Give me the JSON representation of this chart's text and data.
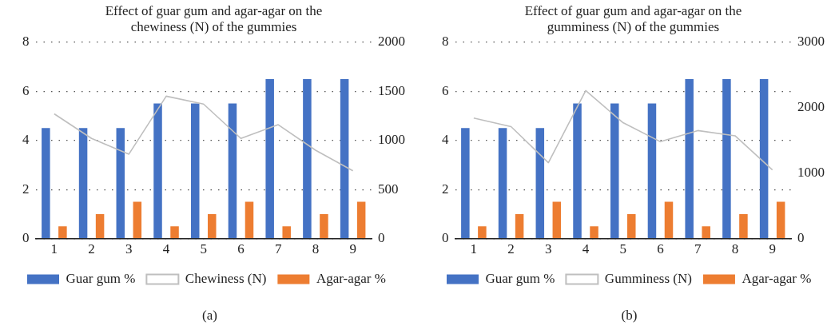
{
  "chart_data": [
    {
      "type": "bar",
      "title": "Effect of guar gum and agar-agar on the chewiness (N) of the gummies",
      "categories": [
        "1",
        "2",
        "3",
        "4",
        "5",
        "6",
        "7",
        "8",
        "9"
      ],
      "series": [
        {
          "name": "Guar gum %",
          "color": "#4472c4",
          "values": [
            4.5,
            4.5,
            4.5,
            5.5,
            5.5,
            5.5,
            6.5,
            6.5,
            6.5
          ]
        },
        {
          "name": "Chewiness (N)",
          "type": "line",
          "axis": "y2",
          "color": "#bfbfbf",
          "values": [
            1270,
            1020,
            860,
            1450,
            1370,
            1020,
            1160,
            900,
            690
          ]
        },
        {
          "name": "Agar-agar %",
          "color": "#ed7d31",
          "values": [
            0.5,
            1,
            1.5,
            0.5,
            1,
            1.5,
            0.5,
            1,
            1.5
          ]
        }
      ],
      "ylim": [
        0,
        8
      ],
      "yticks": [
        0,
        2,
        4,
        6,
        8
      ],
      "y2lim": [
        0,
        2000
      ],
      "y2ticks": [
        0,
        500,
        1000,
        1500,
        2000
      ],
      "grid": "y",
      "legend": "bottom",
      "marker": "none",
      "annotations": [
        "(a)"
      ]
    },
    {
      "type": "bar",
      "title": "Effect of guar gum and agar-agar on the gumminess (N) of the gummies",
      "categories": [
        "1",
        "2",
        "3",
        "4",
        "5",
        "6",
        "7",
        "8",
        "9"
      ],
      "series": [
        {
          "name": "Guar gum %",
          "color": "#4472c4",
          "values": [
            4.5,
            4.5,
            4.5,
            5.5,
            5.5,
            5.5,
            6.5,
            6.5,
            6.5
          ]
        },
        {
          "name": "Gumminess (N)",
          "type": "line",
          "axis": "y2",
          "color": "#bfbfbf",
          "values": [
            1840,
            1710,
            1160,
            2260,
            1770,
            1480,
            1650,
            1570,
            1050
          ]
        },
        {
          "name": "Agar-agar %",
          "color": "#ed7d31",
          "values": [
            0.5,
            1,
            1.5,
            0.5,
            1,
            1.5,
            0.5,
            1,
            1.5
          ]
        }
      ],
      "ylim": [
        0,
        8
      ],
      "yticks": [
        0,
        2,
        4,
        6,
        8
      ],
      "y2lim": [
        0,
        3000
      ],
      "y2ticks": [
        0,
        1000,
        2000,
        3000
      ],
      "grid": "y",
      "legend": "bottom",
      "marker": "none",
      "annotations": [
        "(b)"
      ]
    }
  ]
}
